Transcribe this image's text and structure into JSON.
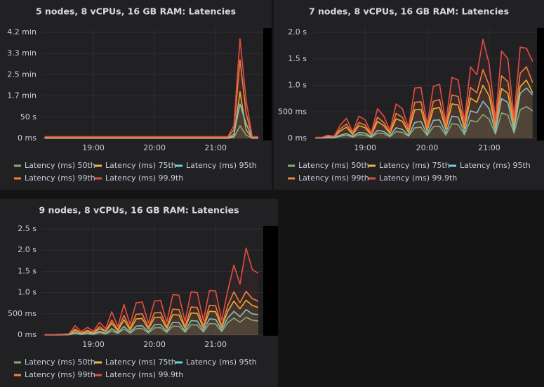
{
  "chart_data": [
    {
      "type": "line",
      "title": "5 nodes, 8 vCPUs, 16 GB RAM: Latencies",
      "fill": true,
      "grid": true,
      "x": [
        18.2,
        18.3,
        18.4,
        18.5,
        18.6,
        18.7,
        18.8,
        18.9,
        19.0,
        19.1,
        19.2,
        19.3,
        19.4,
        19.5,
        19.6,
        19.7,
        19.8,
        19.9,
        20.0,
        20.1,
        20.2,
        20.3,
        20.4,
        20.5,
        20.6,
        20.7,
        20.8,
        20.9,
        21.0,
        21.1,
        21.2,
        21.3,
        21.4,
        21.5,
        21.6,
        21.7
      ],
      "xlim": [
        18.16,
        21.78
      ],
      "xticks": [
        {
          "value": 19,
          "label": "19:00"
        },
        {
          "value": 20,
          "label": "20:00"
        },
        {
          "value": 21,
          "label": "21:00"
        }
      ],
      "ylim": [
        0,
        260000
      ],
      "yticks": [
        {
          "value": 0,
          "label": "0 ms"
        },
        {
          "value": 50000,
          "label": "50 s"
        },
        {
          "value": 100000,
          "label": "1.7 min"
        },
        {
          "value": 150000,
          "label": "2.5 min"
        },
        {
          "value": 200000,
          "label": "3.3 min"
        },
        {
          "value": 250000,
          "label": "4.2 min"
        }
      ],
      "series": [
        {
          "name": "Latency (ms) 50th",
          "color": "#7eb26d",
          "values": [
            300,
            300,
            300,
            300,
            300,
            300,
            300,
            300,
            300,
            300,
            300,
            300,
            300,
            300,
            300,
            300,
            300,
            300,
            300,
            300,
            300,
            300,
            300,
            300,
            300,
            300,
            300,
            300,
            300,
            300,
            300,
            2000,
            30000,
            8000,
            300,
            300
          ]
        },
        {
          "name": "Latency (ms) 75th",
          "color": "#eab839",
          "values": [
            500,
            500,
            500,
            500,
            500,
            500,
            500,
            500,
            500,
            500,
            500,
            500,
            500,
            500,
            500,
            500,
            500,
            500,
            500,
            500,
            500,
            500,
            500,
            500,
            500,
            500,
            500,
            500,
            500,
            500,
            500,
            5000,
            110000,
            20000,
            500,
            500
          ]
        },
        {
          "name": "Latency (ms) 95th",
          "color": "#6ed0e0",
          "values": [
            1200,
            1200,
            1200,
            1200,
            1200,
            1200,
            1200,
            1200,
            1200,
            1200,
            1200,
            1200,
            1200,
            1200,
            1200,
            1200,
            1200,
            1200,
            1200,
            1200,
            1200,
            1200,
            1200,
            1200,
            1200,
            1200,
            1200,
            1200,
            1200,
            1200,
            1200,
            10000,
            81000,
            35000,
            1200,
            1200
          ]
        },
        {
          "name": "Latency (ms) 99th",
          "color": "#ef843c",
          "values": [
            2500,
            2500,
            2500,
            2500,
            2500,
            2500,
            2500,
            2500,
            2500,
            2500,
            2500,
            2500,
            2500,
            2500,
            2500,
            2500,
            2500,
            2500,
            2500,
            2500,
            2500,
            2500,
            2500,
            2500,
            2500,
            2500,
            2500,
            2500,
            2500,
            2500,
            2500,
            20000,
            185000,
            60000,
            2500,
            2500
          ]
        },
        {
          "name": "Latency (ms) 99.9th",
          "color": "#e24d42",
          "values": [
            4000,
            4000,
            4000,
            4000,
            4000,
            4000,
            4000,
            4000,
            4000,
            4000,
            4000,
            4000,
            4000,
            4000,
            4000,
            4000,
            4000,
            4000,
            4000,
            4000,
            4000,
            4000,
            4000,
            4000,
            4000,
            4000,
            4000,
            4000,
            4000,
            4000,
            4000,
            30000,
            235000,
            90000,
            4000,
            4000
          ]
        }
      ]
    },
    {
      "type": "line",
      "title": "7 nodes, 8 vCPUs, 16 GB RAM: Latencies",
      "fill": true,
      "grid": true,
      "x": [
        18.2,
        18.3,
        18.4,
        18.5,
        18.6,
        18.7,
        18.8,
        18.9,
        19.0,
        19.1,
        19.2,
        19.3,
        19.4,
        19.5,
        19.6,
        19.7,
        19.8,
        19.9,
        20.0,
        20.1,
        20.2,
        20.3,
        20.4,
        20.5,
        20.6,
        20.7,
        20.8,
        20.9,
        21.0,
        21.1,
        21.2,
        21.3,
        21.4,
        21.5,
        21.6,
        21.7
      ],
      "xlim": [
        18.15,
        21.77
      ],
      "xticks": [
        {
          "value": 19,
          "label": "19:00"
        },
        {
          "value": 20,
          "label": "20:00"
        },
        {
          "value": 21,
          "label": "21:00"
        }
      ],
      "ylim": [
        0,
        2080
      ],
      "yticks": [
        {
          "value": 0,
          "label": "0 ms"
        },
        {
          "value": 500,
          "label": "500 ms"
        },
        {
          "value": 1000,
          "label": "1.0 s"
        },
        {
          "value": 1500,
          "label": "1.5 s"
        },
        {
          "value": 2000,
          "label": "2.0 s"
        }
      ],
      "series": [
        {
          "name": "Latency (ms) 50th",
          "color": "#7eb26d",
          "values": [
            5,
            5,
            10,
            10,
            40,
            60,
            25,
            70,
            60,
            20,
            100,
            90,
            30,
            130,
            110,
            40,
            200,
            210,
            50,
            220,
            230,
            60,
            280,
            260,
            70,
            340,
            310,
            450,
            360,
            80,
            480,
            440,
            100,
            540,
            600,
            520
          ]
        },
        {
          "name": "Latency (ms) 75th",
          "color": "#eab839",
          "values": [
            10,
            10,
            30,
            20,
            140,
            210,
            70,
            240,
            200,
            60,
            320,
            240,
            90,
            370,
            320,
            110,
            540,
            550,
            140,
            560,
            580,
            170,
            650,
            630,
            180,
            760,
            680,
            1000,
            800,
            200,
            940,
            850,
            230,
            980,
            1100,
            860
          ]
        },
        {
          "name": "Latency (ms) 95th",
          "color": "#6ed0e0",
          "values": [
            8,
            8,
            20,
            15,
            60,
            90,
            40,
            110,
            100,
            30,
            150,
            130,
            50,
            200,
            170,
            60,
            300,
            320,
            80,
            340,
            350,
            100,
            420,
            400,
            110,
            520,
            480,
            700,
            560,
            120,
            750,
            680,
            150,
            850,
            950,
            820
          ]
        },
        {
          "name": "Latency (ms) 99th",
          "color": "#ef843c",
          "values": [
            15,
            15,
            40,
            30,
            180,
            270,
            90,
            300,
            250,
            80,
            400,
            300,
            110,
            470,
            400,
            150,
            680,
            690,
            180,
            700,
            730,
            220,
            820,
            790,
            230,
            960,
            860,
            1300,
            1000,
            250,
            1180,
            1070,
            290,
            1230,
            1350,
            1050
          ]
        },
        {
          "name": "Latency (ms) 99.9th",
          "color": "#e24d42",
          "values": [
            20,
            20,
            60,
            40,
            250,
            380,
            120,
            420,
            350,
            100,
            560,
            420,
            150,
            650,
            560,
            200,
            950,
            960,
            250,
            980,
            1020,
            300,
            1150,
            1100,
            320,
            1350,
            1200,
            1870,
            1400,
            350,
            1650,
            1500,
            400,
            1720,
            1700,
            1450
          ]
        }
      ]
    },
    {
      "type": "line",
      "title": "9 nodes, 8 vCPUs, 16 GB RAM: Latencies",
      "fill": true,
      "grid": true,
      "x": [
        18.2,
        18.3,
        18.4,
        18.5,
        18.6,
        18.7,
        18.8,
        18.9,
        19.0,
        19.1,
        19.2,
        19.3,
        19.4,
        19.5,
        19.6,
        19.7,
        19.8,
        19.9,
        20.0,
        20.1,
        20.2,
        20.3,
        20.4,
        20.5,
        20.6,
        20.7,
        20.8,
        20.9,
        21.0,
        21.1,
        21.2,
        21.3,
        21.4,
        21.5,
        21.6,
        21.7
      ],
      "xlim": [
        18.16,
        21.78
      ],
      "xticks": [
        {
          "value": 19,
          "label": "19:00"
        },
        {
          "value": 20,
          "label": "20:00"
        },
        {
          "value": 21,
          "label": "21:00"
        }
      ],
      "ylim": [
        0,
        2600
      ],
      "yticks": [
        {
          "value": 0,
          "label": "0 ms"
        },
        {
          "value": 500,
          "label": "500 ms"
        },
        {
          "value": 1000,
          "label": "1.0 s"
        },
        {
          "value": 1500,
          "label": "1.5 s"
        },
        {
          "value": 2000,
          "label": "2.0 s"
        },
        {
          "value": 2500,
          "label": "2.5 s"
        }
      ],
      "series": [
        {
          "name": "Latency (ms) 50th",
          "color": "#7eb26d",
          "values": [
            3,
            3,
            4,
            5,
            7,
            40,
            15,
            35,
            15,
            60,
            25,
            100,
            40,
            140,
            45,
            150,
            155,
            50,
            170,
            175,
            60,
            210,
            205,
            65,
            240,
            235,
            70,
            270,
            265,
            80,
            290,
            400,
            300,
            420,
            350,
            330
          ]
        },
        {
          "name": "Latency (ms) 75th",
          "color": "#eab839",
          "values": [
            6,
            6,
            8,
            10,
            15,
            110,
            40,
            85,
            45,
            150,
            80,
            280,
            100,
            360,
            120,
            380,
            390,
            140,
            410,
            420,
            150,
            480,
            470,
            160,
            520,
            510,
            170,
            560,
            550,
            180,
            560,
            800,
            620,
            820,
            700,
            650
          ]
        },
        {
          "name": "Latency (ms) 95th",
          "color": "#6ed0e0",
          "values": [
            4,
            4,
            5,
            8,
            10,
            60,
            20,
            50,
            25,
            90,
            40,
            150,
            60,
            200,
            70,
            210,
            220,
            80,
            240,
            250,
            90,
            300,
            290,
            100,
            340,
            330,
            110,
            380,
            370,
            120,
            400,
            560,
            430,
            600,
            500,
            480
          ]
        },
        {
          "name": "Latency (ms) 99th",
          "color": "#ef843c",
          "values": [
            8,
            8,
            10,
            15,
            20,
            140,
            50,
            110,
            60,
            200,
            100,
            350,
            130,
            460,
            160,
            490,
            500,
            180,
            520,
            540,
            190,
            610,
            600,
            200,
            660,
            650,
            210,
            700,
            690,
            220,
            700,
            1020,
            760,
            1030,
            860,
            800
          ]
        },
        {
          "name": "Latency (ms) 99.9th",
          "color": "#e24d42",
          "values": [
            10,
            10,
            15,
            20,
            30,
            220,
            80,
            180,
            90,
            300,
            150,
            550,
            200,
            720,
            250,
            760,
            780,
            280,
            800,
            820,
            300,
            950,
            940,
            320,
            1020,
            1000,
            340,
            1050,
            1040,
            350,
            1050,
            1650,
            1200,
            2050,
            1550,
            1450
          ]
        }
      ]
    }
  ]
}
